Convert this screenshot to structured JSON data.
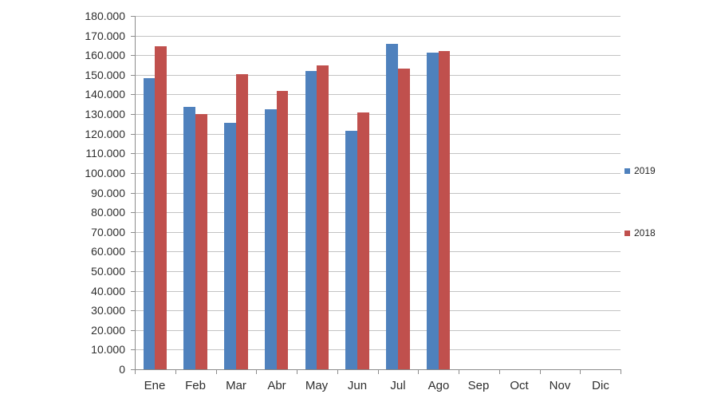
{
  "chart_data": {
    "type": "bar",
    "title": "",
    "xlabel": "",
    "ylabel": "",
    "categories": [
      "Ene",
      "Feb",
      "Mar",
      "Abr",
      "May",
      "Jun",
      "Jul",
      "Ago",
      "Sep",
      "Oct",
      "Nov",
      "Dic"
    ],
    "series": [
      {
        "name": "2019",
        "color": "#4f81bd",
        "values": [
          148500,
          133500,
          125500,
          132500,
          152000,
          121500,
          166000,
          161500,
          null,
          null,
          null,
          null
        ]
      },
      {
        "name": "2018",
        "color": "#c0504d",
        "values": [
          164500,
          130000,
          150500,
          142000,
          155000,
          131000,
          153000,
          162000,
          null,
          null,
          null,
          null
        ]
      }
    ],
    "ylim": [
      0,
      180000
    ],
    "ytick_step": 10000,
    "ytick_labels": [
      "0",
      "10.000",
      "20.000",
      "30.000",
      "40.000",
      "50.000",
      "60.000",
      "70.000",
      "80.000",
      "90.000",
      "100.000",
      "110.000",
      "120.000",
      "130.000",
      "140.000",
      "150.000",
      "160.000",
      "170.000",
      "180.000"
    ],
    "grid": true,
    "legend_position": "right"
  },
  "colors": {
    "grid": "#c3c3c3",
    "axis": "#8c8c8c",
    "text": "#2e2e2e",
    "series_2019": "#4f81bd",
    "series_2018": "#c0504d"
  }
}
